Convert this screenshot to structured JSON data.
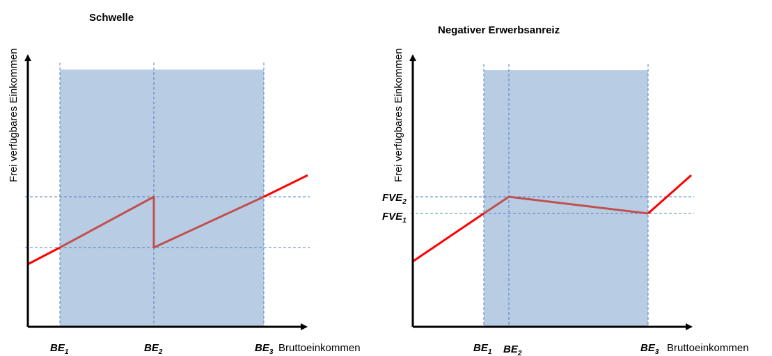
{
  "colors": {
    "shade": "#b8cce4",
    "guide": "#4f81bd",
    "line_outside": "#ff0000",
    "line_inside": "#c0504d",
    "axis": "#000000"
  },
  "left": {
    "title": "Schwelle",
    "ylabel": "Frei verfügbares Einkommen",
    "xlabel": "Bruttoeinkommen",
    "ticks": [
      {
        "main": "BE",
        "sub": "1"
      },
      {
        "main": "BE",
        "sub": "2"
      },
      {
        "main": "BE",
        "sub": "3"
      }
    ]
  },
  "right": {
    "title": "Negativer Erwerbsanreiz",
    "ylabel": "Frei verfügbares Einkommen",
    "xlabel": "Bruttoeinkommen",
    "ticks": [
      {
        "main": "BE",
        "sub": "1"
      },
      {
        "main": "BE",
        "sub": "2"
      },
      {
        "main": "BE",
        "sub": "3"
      }
    ],
    "yticks": [
      {
        "main": "FVE",
        "sub": "2"
      },
      {
        "main": "FVE",
        "sub": "1"
      }
    ]
  }
}
